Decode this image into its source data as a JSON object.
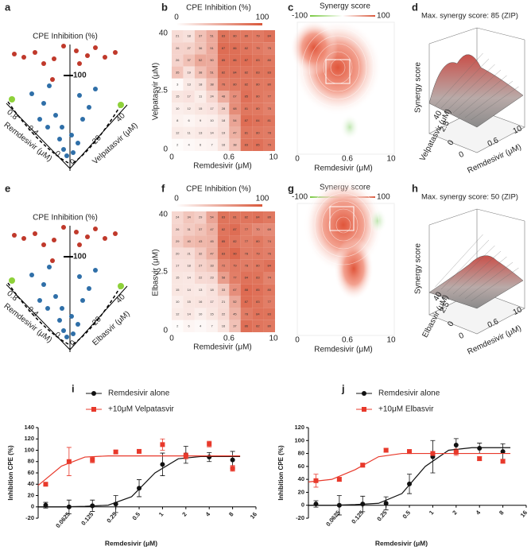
{
  "rows": [
    {
      "scatter3d": {
        "label": "a",
        "title": "CPE Inhibition (%)",
        "z_tick": "100",
        "x_label": "Remdesivir (μM)",
        "x_ticks": [
          "0.8",
          "0.4",
          "0"
        ],
        "y_label": "Velpatasvir (μM)",
        "y_ticks": [
          "0",
          "20",
          "40"
        ]
      },
      "heatmap": {
        "label": "b",
        "title": "CPE Inhibition (%)",
        "scale": [
          "0",
          "100"
        ],
        "x_label": "Remdesivir (μM)",
        "x_ticks": [
          "0",
          "0.6",
          "10"
        ],
        "y_label": "Velpatasvir (μM)",
        "y_ticks": [
          "40",
          "2.5",
          "0"
        ],
        "cells": [
          [
            21,
            18,
            37,
            51,
            83,
            80,
            80,
            79,
            84
          ],
          [
            26,
            27,
            36,
            51,
            87,
            86,
            82,
            79,
            75
          ],
          [
            26,
            37,
            52,
            50,
            85,
            86,
            87,
            83,
            80
          ],
          [
            35,
            19,
            38,
            51,
            82,
            84,
            82,
            83,
            83
          ],
          [
            3,
            13,
            18,
            38,
            76,
            80,
            82,
            80,
            80
          ],
          [
            15,
            17,
            11,
            24,
            48,
            67,
            85,
            80,
            77
          ],
          [
            10,
            12,
            15,
            17,
            28,
            68,
            81,
            80,
            75
          ],
          [
            8,
            6,
            9,
            10,
            18,
            54,
            87,
            84,
            81
          ],
          [
            12,
            11,
            13,
            14,
            19,
            47,
            81,
            80,
            78
          ],
          [
            2,
            4,
            6,
            7,
            16,
            38,
            83,
            85,
            79
          ]
        ]
      },
      "synergy": {
        "label": "c",
        "title": "Synergy score",
        "scale": [
          "-100",
          "100"
        ],
        "x_label": "Remdesivir (μM)",
        "x_ticks": [
          "0",
          "0.6",
          "10"
        ]
      },
      "surface": {
        "label": "d",
        "title": "Max. synergy score: 85 (ZIP)",
        "z_label": "Synergy score",
        "y_label": "Velpatasvir (μM)",
        "y_ticks": [
          "40",
          "2.5",
          "0"
        ],
        "x_label": "Remdesivir (μM)",
        "x_ticks": [
          "0",
          "0.6",
          "10"
        ]
      }
    },
    {
      "scatter3d": {
        "label": "e",
        "title": "CPE Inhibition (%)",
        "z_tick": "100",
        "x_label": "Remdesivir (μM)",
        "x_ticks": [
          "0.8",
          "0.4",
          "0"
        ],
        "y_label": "Elbasvir (μM)",
        "y_ticks": [
          "0",
          "20",
          "40"
        ]
      },
      "heatmap": {
        "label": "f",
        "title": "CPE Inhibition (%)",
        "scale": [
          "0",
          "100"
        ],
        "x_label": "Remdesivir (μM)",
        "x_ticks": [
          "0",
          "0.6",
          "10"
        ],
        "y_label": "Elbasvir (μM)",
        "y_ticks": [
          "40",
          "2.5",
          "0"
        ],
        "cells": [
          [
            24,
            34,
            29,
            54,
            83,
            81,
            82,
            84,
            80
          ],
          [
            26,
            31,
            37,
            47,
            82,
            87,
            77,
            70,
            69
          ],
          [
            29,
            40,
            43,
            45,
            85,
            82,
            77,
            80,
            74
          ],
          [
            20,
            21,
            32,
            47,
            83,
            90,
            78,
            79,
            76
          ],
          [
            17,
            18,
            27,
            33,
            72,
            79,
            78,
            80,
            84
          ],
          [
            15,
            14,
            22,
            23,
            58,
            77,
            84,
            83,
            74
          ],
          [
            15,
            14,
            13,
            18,
            33,
            67,
            88,
            85,
            80
          ],
          [
            10,
            15,
            16,
            17,
            21,
            52,
            87,
            83,
            77
          ],
          [
            12,
            14,
            10,
            15,
            22,
            45,
            78,
            84,
            83
          ],
          [
            2,
            6,
            4,
            7,
            16,
            37,
            86,
            82,
            80
          ]
        ]
      },
      "synergy": {
        "label": "g",
        "title": "Synergy score",
        "scale": [
          "-100",
          "100"
        ],
        "x_label": "Remdesivir (μM)",
        "x_ticks": [
          "0",
          "0.6",
          "10"
        ]
      },
      "surface": {
        "label": "h",
        "title": "Max. synergy score: 50 (ZIP)",
        "z_label": "Synergy score",
        "y_label": "Elbasvir (μM)",
        "y_ticks": [
          "40",
          "2.5",
          "0"
        ],
        "x_label": "Remdesivir (μM)",
        "x_ticks": [
          "0",
          "0.6",
          "10"
        ]
      }
    }
  ],
  "chart_data": [
    {
      "type": "line",
      "label": "i",
      "x_label": "Remdesivir (μM)",
      "y_label": "Inhibition CPE (%)",
      "log_x": true,
      "x": [
        0.03125,
        0.0625,
        0.125,
        0.25,
        0.5,
        1,
        2,
        4,
        8
      ],
      "xlim": [
        0.025,
        16
      ],
      "xticks": [
        0.0625,
        0.125,
        0.25,
        0.5,
        1,
        2,
        4,
        8,
        16
      ],
      "ylim": [
        -20,
        140
      ],
      "yticks": [
        -20,
        0,
        20,
        40,
        60,
        80,
        100,
        120,
        140
      ],
      "series": [
        {
          "name": "Remdesivir alone",
          "color": "#111111",
          "marker": "circle",
          "values": [
            3,
            0,
            2,
            5,
            33,
            75,
            92,
            88,
            83
          ],
          "errors": [
            5,
            12,
            10,
            15,
            15,
            20,
            15,
            8,
            15
          ],
          "curve": {
            "x": [
              0.025,
              0.05,
              0.1,
              0.2,
              0.4,
              0.8,
              1.6,
              3.2,
              6.4,
              10
            ],
            "values": [
              0,
              0,
              1,
              3,
              18,
              60,
              85,
              89,
              89,
              89
            ]
          }
        },
        {
          "name": "+10μM Velpatasvir",
          "color": "#e8392b",
          "marker": "square",
          "values": [
            40,
            80,
            83,
            97,
            98,
            110,
            90,
            111,
            68
          ],
          "errors": [
            3,
            25,
            5,
            3,
            3,
            10,
            5,
            5,
            5
          ],
          "curve": {
            "x": [
              0.025,
              0.05,
              0.1,
              0.2,
              0.4,
              0.8,
              1.6,
              3.2,
              6.4,
              10
            ],
            "values": [
              38,
              72,
              88,
              90,
              90,
              90,
              90,
              90,
              90,
              90
            ]
          }
        }
      ]
    },
    {
      "type": "line",
      "label": "j",
      "x_label": "Remdesivir (μM)",
      "y_label": "Inhibition CPE (%)",
      "log_x": true,
      "x": [
        0.03125,
        0.0625,
        0.125,
        0.25,
        0.5,
        1,
        2,
        4,
        8
      ],
      "xlim": [
        0.025,
        16
      ],
      "xticks": [
        0.0625,
        0.125,
        0.25,
        0.5,
        1,
        2,
        4,
        8,
        16
      ],
      "ylim": [
        -20,
        120
      ],
      "yticks": [
        -20,
        0,
        20,
        40,
        60,
        80,
        100,
        120
      ],
      "series": [
        {
          "name": "Remdesivir alone",
          "color": "#111111",
          "marker": "circle",
          "values": [
            2,
            0,
            2,
            3,
            33,
            75,
            93,
            88,
            83
          ],
          "errors": [
            5,
            15,
            12,
            10,
            15,
            25,
            10,
            8,
            12
          ],
          "curve": {
            "x": [
              0.025,
              0.05,
              0.1,
              0.2,
              0.4,
              0.8,
              1.6,
              3.2,
              6.4,
              10
            ],
            "values": [
              0,
              0,
              1,
              3,
              18,
              60,
              85,
              89,
              89,
              89
            ]
          }
        },
        {
          "name": "+10μM Elbasvir",
          "color": "#e8392b",
          "marker": "square",
          "values": [
            38,
            40,
            62,
            85,
            83,
            80,
            82,
            72,
            68
          ],
          "errors": [
            10,
            3,
            3,
            3,
            3,
            3,
            5,
            3,
            3
          ],
          "curve": {
            "x": [
              0.025,
              0.05,
              0.1,
              0.2,
              0.4,
              0.8,
              1.6,
              3.2,
              6.4,
              10
            ],
            "values": [
              36,
              40,
              55,
              75,
              80,
              80,
              80,
              80,
              80,
              80
            ]
          }
        }
      ]
    }
  ]
}
